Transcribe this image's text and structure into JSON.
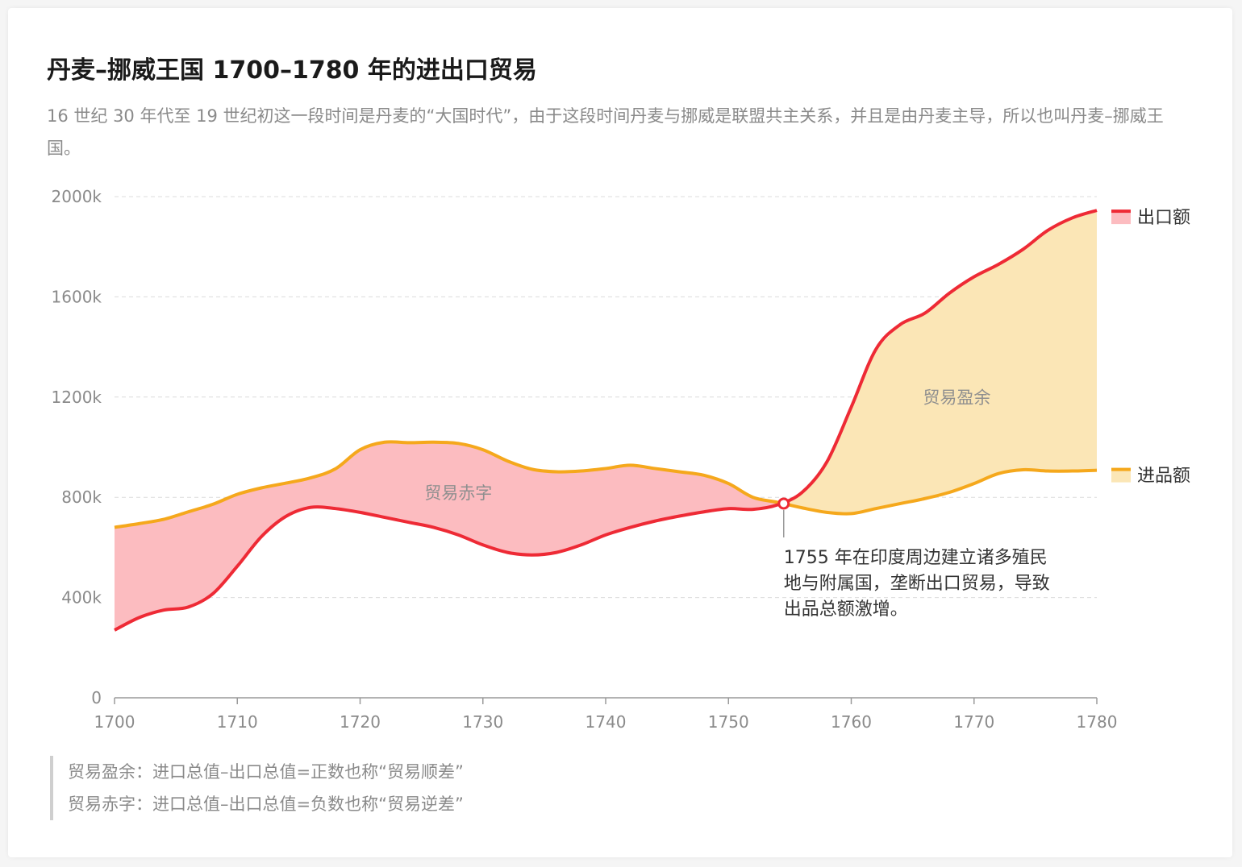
{
  "title": "丹麦–挪威王国 1700–1780 年的进出口贸易",
  "subtitle": "16 世纪 30 年代至 19 世纪初这一段时间是丹麦的“大国时代”，由于这段时间丹麦与挪威是联盟共主关系，并且是由丹麦主导，所以也叫丹麦–挪威王国。",
  "notes": [
    "贸易盈余：进口总值–出口总值=正数也称“贸易顺差”",
    "贸易赤字：进口总值–出口总值=负数也称“贸易逆差”"
  ],
  "colors": {
    "export": "#ee2a35",
    "import": "#f5a81c",
    "deficit_fill": "#fcbcc0",
    "surplus_fill": "#fbe6b6"
  },
  "chart_data": {
    "type": "area",
    "x": [
      1700,
      1702,
      1704,
      1706,
      1708,
      1710,
      1712,
      1714,
      1716,
      1718,
      1720,
      1722,
      1724,
      1726,
      1728,
      1730,
      1732,
      1734,
      1736,
      1738,
      1740,
      1742,
      1744,
      1746,
      1748,
      1750,
      1752,
      1754,
      1756,
      1758,
      1760,
      1762,
      1764,
      1766,
      1768,
      1770,
      1772,
      1774,
      1776,
      1778,
      1780
    ],
    "series": [
      {
        "name": "出口额",
        "values": [
          270,
          320,
          350,
          362,
          415,
          525,
          645,
          725,
          760,
          755,
          740,
          720,
          700,
          680,
          650,
          610,
          580,
          570,
          580,
          610,
          650,
          680,
          705,
          725,
          742,
          755,
          752,
          770,
          820,
          940,
          1160,
          1390,
          1490,
          1535,
          1615,
          1680,
          1730,
          1790,
          1865,
          1915,
          1945
        ]
      },
      {
        "name": "进品额",
        "values": [
          680,
          695,
          712,
          742,
          772,
          812,
          838,
          857,
          878,
          914,
          990,
          1020,
          1018,
          1020,
          1015,
          990,
          945,
          912,
          902,
          905,
          915,
          928,
          915,
          902,
          888,
          855,
          800,
          780,
          758,
          740,
          735,
          755,
          775,
          795,
          820,
          855,
          895,
          910,
          905,
          905,
          908
        ]
      }
    ],
    "xticks": [
      "1700",
      "1710",
      "1720",
      "1730",
      "1740",
      "1750",
      "1760",
      "1770",
      "1780"
    ],
    "yticks": [
      "0",
      "400k",
      "800k",
      "1200k",
      "1600k",
      "2000k"
    ],
    "xlim": [
      1700,
      1780
    ],
    "ylim": [
      0,
      2000
    ],
    "grid": true,
    "legend_position": "right",
    "area_labels": {
      "deficit": "贸易赤字",
      "surplus": "贸易盈余"
    },
    "annotation": {
      "x": 1754.5,
      "y": 775,
      "lines": [
        "1755 年在印度周边建立诸多殖民",
        "地与附属国，垄断出口贸易，导致",
        "出品总额激增。"
      ]
    }
  }
}
